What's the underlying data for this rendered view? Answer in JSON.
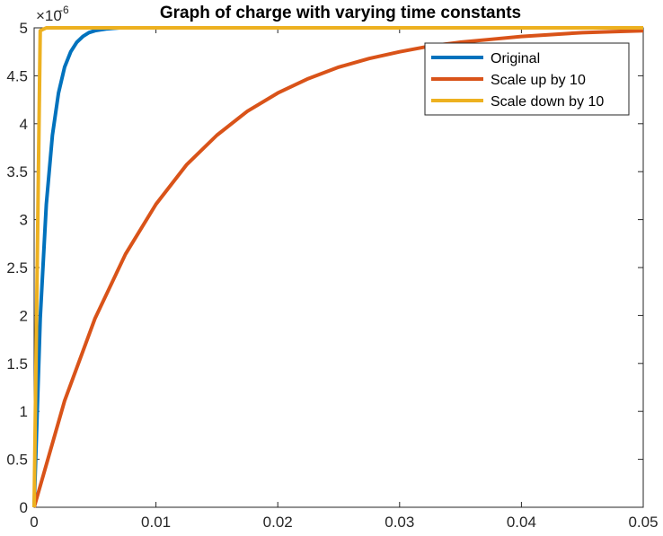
{
  "chart_data": {
    "type": "line",
    "title": "Graph of charge with varying time constants",
    "xlabel": "",
    "ylabel": "",
    "xlim": [
      0,
      0.05
    ],
    "ylim": [
      0,
      5
    ],
    "y_exponent_label": "×10",
    "y_exponent_power": "-6",
    "x_ticks": [
      "0",
      "0.01",
      "0.02",
      "0.03",
      "0.04",
      "0.05"
    ],
    "y_ticks": [
      "0",
      "0.5",
      "1",
      "1.5",
      "2",
      "2.5",
      "3",
      "3.5",
      "4",
      "4.5",
      "5"
    ],
    "grid": false,
    "legend_position": "top-right",
    "series": [
      {
        "name": "Original",
        "color": "#0072BD",
        "x": [
          0,
          0.0005,
          0.001,
          0.0015,
          0.002,
          0.0025,
          0.003,
          0.0035,
          0.004,
          0.0045,
          0.005,
          0.006,
          0.007,
          0.008,
          0.009,
          0.01,
          0.02,
          0.03,
          0.04,
          0.05
        ],
        "values": [
          0,
          1.97,
          3.16,
          3.88,
          4.32,
          4.59,
          4.75,
          4.85,
          4.91,
          4.95,
          4.97,
          4.99,
          5.0,
          5.0,
          5.0,
          5.0,
          5.0,
          5.0,
          5.0,
          5.0
        ]
      },
      {
        "name": "Scale up by 10",
        "color": "#D95319",
        "x": [
          0,
          0.0025,
          0.005,
          0.0075,
          0.01,
          0.0125,
          0.015,
          0.0175,
          0.02,
          0.0225,
          0.025,
          0.0275,
          0.03,
          0.0325,
          0.035,
          0.0375,
          0.04,
          0.0425,
          0.045,
          0.0475,
          0.05
        ],
        "values": [
          0,
          1.11,
          1.97,
          2.64,
          3.16,
          3.57,
          3.88,
          4.13,
          4.32,
          4.47,
          4.59,
          4.68,
          4.75,
          4.81,
          4.85,
          4.88,
          4.91,
          4.93,
          4.95,
          4.96,
          4.97
        ]
      },
      {
        "name": "Scale down by 10",
        "color": "#EDB120",
        "x": [
          0,
          0.0005,
          0.001,
          0.0015,
          0.002,
          0.005,
          0.01,
          0.02,
          0.03,
          0.04,
          0.05
        ],
        "values": [
          0,
          4.97,
          5.0,
          5.0,
          5.0,
          5.0,
          5.0,
          5.0,
          5.0,
          5.0,
          5.0
        ]
      }
    ]
  }
}
